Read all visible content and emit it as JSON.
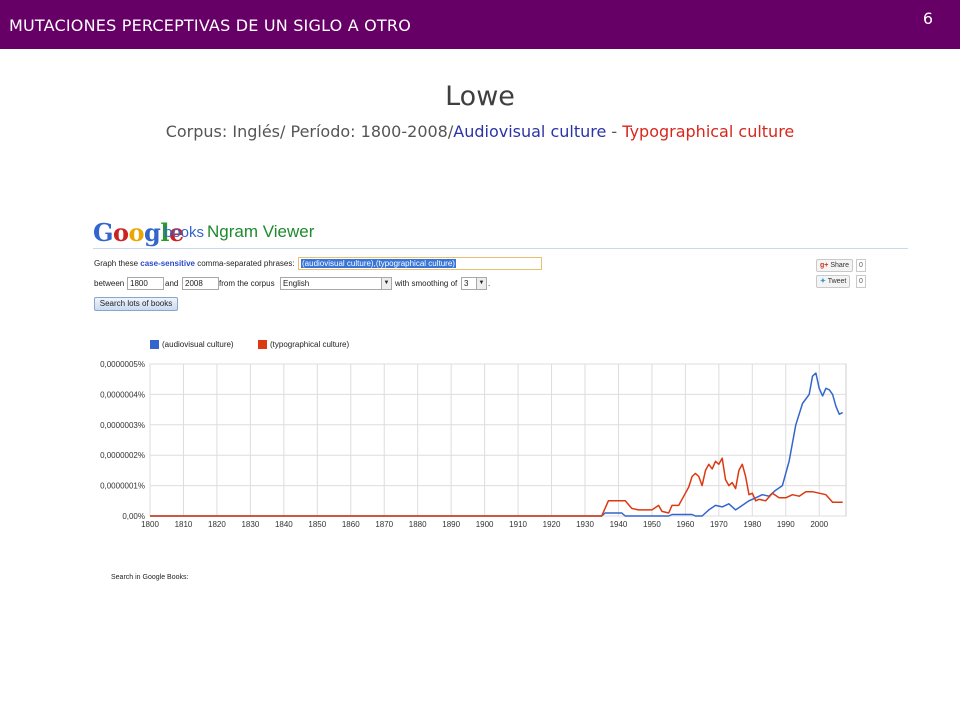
{
  "header": {
    "title": "MUTACIONES PERCEPTIVAS DE UN SIGLO A OTRO",
    "page_number": "6",
    "color": "#660066"
  },
  "slide": {
    "title": "Lowe",
    "subtitle_prefix": "Corpus: Inglés/ Período: 1800-2008/",
    "subtitle_blue": "Audiovisual culture",
    "subtitle_sep": " - ",
    "subtitle_red": "Typographical culture"
  },
  "ngram": {
    "logo": "Google",
    "books": "books",
    "viewer_title": "Ngram Viewer",
    "graph_these": "Graph these",
    "case_sensitive": "case-sensitive",
    "comma_separated": "comma-separated phrases:",
    "phrases_value": "(audiovisual culture),(typographical culture)",
    "between_label": "between",
    "start_year": "1800",
    "and_label": "and",
    "end_year": "2008",
    "corpus_label": "from the corpus",
    "corpus_value": "English",
    "smoothing_label": "with smoothing of",
    "smoothing_value": "3",
    "period": ".",
    "search_button": "Search lots of books",
    "share_label": "Share",
    "share_count": "0",
    "tweet_label": "Tweet",
    "tweet_count": "0",
    "search_in_books": "Search in Google Books:"
  },
  "chart_data": {
    "type": "line",
    "title": "",
    "xlabel": "",
    "ylabel": "",
    "xlim": [
      1800,
      2008
    ],
    "ylim": [
      0,
      5e-09
    ],
    "x_ticks": [
      "1800",
      "1810",
      "1820",
      "1830",
      "1840",
      "1850",
      "1860",
      "1870",
      "1880",
      "1890",
      "1900",
      "1910",
      "1920",
      "1930",
      "1940",
      "1950",
      "1960",
      "1970",
      "1980",
      "1990",
      "2000"
    ],
    "y_ticks": [
      "0,00%",
      "0,0000001%",
      "0,0000002%",
      "0,0000003%",
      "0,0000004%",
      "0,0000005%"
    ],
    "y_tick_values": [
      0,
      1e-09,
      2e-09,
      3e-09,
      4e-09,
      5e-09
    ],
    "grid": true,
    "legend": "top-left",
    "series": [
      {
        "name": "(audiovisual culture)",
        "color": "#3366cc",
        "points": [
          [
            1800,
            0
          ],
          [
            1935,
            0
          ],
          [
            1936,
            1e-10
          ],
          [
            1941,
            1e-10
          ],
          [
            1942,
            0
          ],
          [
            1955,
            0
          ],
          [
            1956,
            5e-11
          ],
          [
            1962,
            5e-11
          ],
          [
            1963,
            0
          ],
          [
            1965,
            0
          ],
          [
            1967,
            2e-10
          ],
          [
            1969,
            3.5e-10
          ],
          [
            1971,
            3e-10
          ],
          [
            1973,
            4e-10
          ],
          [
            1975,
            2e-10
          ],
          [
            1977,
            3.5e-10
          ],
          [
            1979,
            5e-10
          ],
          [
            1981,
            6e-10
          ],
          [
            1983,
            7e-10
          ],
          [
            1985,
            6.5e-10
          ],
          [
            1987,
            8.5e-10
          ],
          [
            1989,
            1e-09
          ],
          [
            1991,
            1.8e-09
          ],
          [
            1993,
            3e-09
          ],
          [
            1995,
            3.7e-09
          ],
          [
            1997,
            4e-09
          ],
          [
            1998,
            4.6e-09
          ],
          [
            1999,
            4.7e-09
          ],
          [
            2000,
            4.2e-09
          ],
          [
            2001,
            3.95e-09
          ],
          [
            2002,
            4.2e-09
          ],
          [
            2003,
            4.15e-09
          ],
          [
            2004,
            4e-09
          ],
          [
            2005,
            3.6e-09
          ],
          [
            2006,
            3.35e-09
          ],
          [
            2007,
            3.4e-09
          ]
        ]
      },
      {
        "name": "(typographical culture)",
        "color": "#dc3912",
        "points": [
          [
            1800,
            0
          ],
          [
            1935,
            0
          ],
          [
            1937,
            5e-10
          ],
          [
            1942,
            5e-10
          ],
          [
            1944,
            2.5e-10
          ],
          [
            1946,
            2e-10
          ],
          [
            1950,
            2e-10
          ],
          [
            1952,
            3.5e-10
          ],
          [
            1953,
            1.5e-10
          ],
          [
            1955,
            1e-10
          ],
          [
            1956,
            3.5e-10
          ],
          [
            1958,
            3.5e-10
          ],
          [
            1960,
            7.5e-10
          ],
          [
            1961,
            9.5e-10
          ],
          [
            1962,
            1.3e-09
          ],
          [
            1963,
            1.4e-09
          ],
          [
            1964,
            1.3e-09
          ],
          [
            1965,
            1e-09
          ],
          [
            1966,
            1.5e-09
          ],
          [
            1967,
            1.7e-09
          ],
          [
            1968,
            1.55e-09
          ],
          [
            1969,
            1.8e-09
          ],
          [
            1970,
            1.7e-09
          ],
          [
            1971,
            1.9e-09
          ],
          [
            1972,
            1.2e-09
          ],
          [
            1973,
            1e-09
          ],
          [
            1974,
            1.1e-09
          ],
          [
            1975,
            9e-10
          ],
          [
            1976,
            1.5e-09
          ],
          [
            1977,
            1.7e-09
          ],
          [
            1978,
            1.3e-09
          ],
          [
            1979,
            7e-10
          ],
          [
            1980,
            7.5e-10
          ],
          [
            1981,
            5e-10
          ],
          [
            1982,
            5.5e-10
          ],
          [
            1984,
            5e-10
          ],
          [
            1986,
            7.5e-10
          ],
          [
            1988,
            6e-10
          ],
          [
            1990,
            6e-10
          ],
          [
            1992,
            7e-10
          ],
          [
            1994,
            6.5e-10
          ],
          [
            1996,
            8e-10
          ],
          [
            1998,
            8e-10
          ],
          [
            2000,
            7.5e-10
          ],
          [
            2002,
            7e-10
          ],
          [
            2004,
            4.5e-10
          ],
          [
            2006,
            4.5e-10
          ],
          [
            2007,
            4.5e-10
          ]
        ]
      }
    ]
  }
}
